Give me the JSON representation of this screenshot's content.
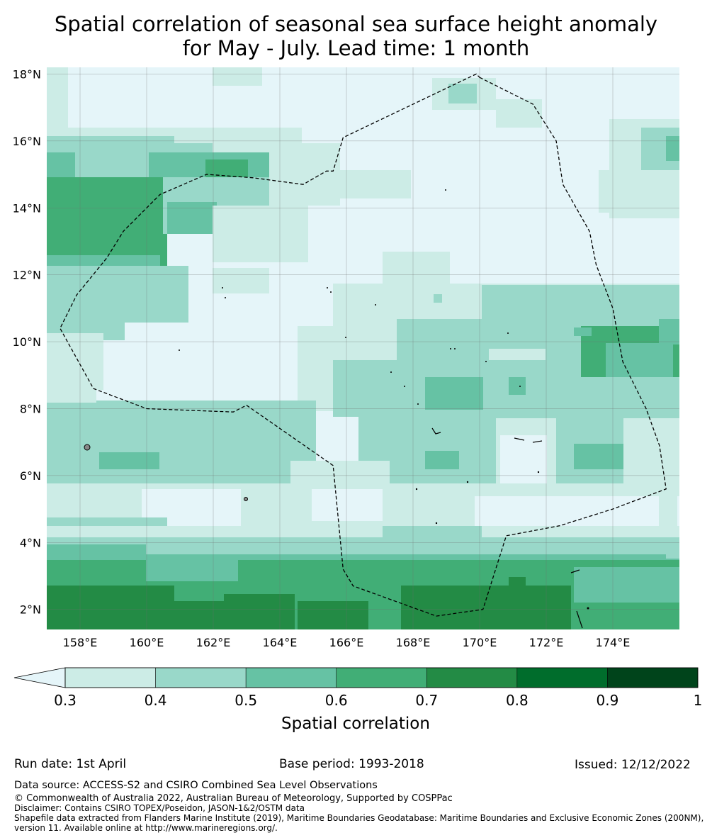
{
  "title_line1": "Spatial correlation of seasonal sea surface height anomaly",
  "title_line2": "for May - July. Lead time: 1 month",
  "map": {
    "lon_range": [
      157,
      176
    ],
    "lat_range": [
      1.4,
      18.2
    ],
    "lon_ticks": [
      "158°E",
      "160°E",
      "162°E",
      "164°E",
      "166°E",
      "168°E",
      "170°E",
      "172°E",
      "174°E"
    ],
    "lat_ticks": [
      "2°N",
      "4°N",
      "6°N",
      "8°N",
      "10°N",
      "12°N",
      "14°N",
      "16°N",
      "18°N"
    ],
    "grid": true,
    "eez_boundary_lonlat": [
      [
        170.0,
        17.9
      ],
      [
        171.6,
        17.1
      ],
      [
        172.3,
        16.0
      ],
      [
        172.5,
        14.7
      ],
      [
        173.3,
        13.3
      ],
      [
        173.5,
        12.3
      ],
      [
        174.0,
        11.0
      ],
      [
        174.3,
        9.4
      ],
      [
        175.0,
        8.0
      ],
      [
        175.4,
        6.9
      ],
      [
        175.6,
        5.6
      ],
      [
        174.0,
        5.0
      ],
      [
        172.4,
        4.5
      ],
      [
        170.8,
        4.2
      ],
      [
        170.1,
        2.0
      ],
      [
        168.7,
        1.8
      ],
      [
        166.2,
        2.7
      ],
      [
        165.9,
        3.2
      ],
      [
        165.6,
        6.3
      ],
      [
        163.0,
        8.1
      ],
      [
        162.6,
        7.9
      ],
      [
        160.0,
        8.0
      ],
      [
        158.4,
        8.6
      ],
      [
        157.4,
        10.4
      ],
      [
        157.9,
        11.4
      ],
      [
        158.8,
        12.5
      ],
      [
        159.3,
        13.3
      ],
      [
        160.4,
        14.4
      ],
      [
        161.8,
        15.0
      ],
      [
        163.2,
        14.9
      ],
      [
        164.7,
        14.7
      ],
      [
        165.4,
        15.1
      ],
      [
        165.6,
        15.1
      ],
      [
        165.9,
        16.1
      ],
      [
        169.9,
        18.0
      ]
    ]
  },
  "colorbar": {
    "label": "Spatial correlation",
    "tick_labels": [
      "0.3",
      "0.4",
      "0.5",
      "0.6",
      "0.7",
      "0.8",
      "0.9",
      "1"
    ],
    "colors": [
      "#e5f5f9",
      "#ccece6",
      "#99d8c9",
      "#66c2a4",
      "#41ae76",
      "#238b45",
      "#006d2c",
      "#00441b"
    ]
  },
  "run_date": "Run date: 1st April",
  "base_period": "Base period: 1993-2018",
  "issued": "Issued: 12/12/2022",
  "data_source": "Data source: ACCESS-S2 and CSIRO Combined Sea Level Observations",
  "copyright": "© Commonwealth of Australia 2022, Australian Bureau of Meteorology, Supported by COSPPac",
  "disclaimer": "Disclaimer: Contains CSIRO TOPEX/Poseidon, JASON-1&2/OSTM data",
  "shapefile_line1": "Shapefile data extracted from Flanders Marine Institute (2019), Maritime Boundaries Geodatabase: Maritime Boundaries and Exclusive Economic Zones (200NM),",
  "shapefile_line2": "version 11. Available online at http://www.marineregions.org/."
}
